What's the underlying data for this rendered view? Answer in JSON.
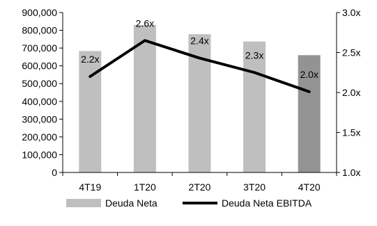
{
  "chart_data": {
    "type": "bar",
    "categories": [
      "4T19",
      "1T20",
      "2T20",
      "3T20",
      "4T20"
    ],
    "series": [
      {
        "name": "Deuda Neta",
        "type": "bar",
        "axis": "left",
        "values": [
          683000,
          830000,
          778000,
          737000,
          660000
        ],
        "colors": [
          "#bfbfbf",
          "#bfbfbf",
          "#bfbfbf",
          "#bfbfbf",
          "#939393"
        ]
      },
      {
        "name": "Deuda Neta EBITDA",
        "type": "line",
        "axis": "right",
        "values": [
          2.2,
          2.65,
          2.43,
          2.25,
          2.01
        ],
        "labels": [
          "2.2x",
          "2.6x",
          "2.4x",
          "2.3x",
          "2.0x"
        ],
        "color": "#000000"
      }
    ],
    "y_left": {
      "min": 0,
      "max": 900000,
      "ticks": [
        "0",
        "100,000",
        "200,000",
        "300,000",
        "400,000",
        "500,000",
        "600,000",
        "700,000",
        "800,000",
        "900,000"
      ]
    },
    "y_right": {
      "min": 1.0,
      "max": 3.0,
      "ticks": [
        "1.0x",
        "1.5x",
        "2.0x",
        "2.5x",
        "3.0x"
      ]
    },
    "grid": false,
    "legend_position": "bottom"
  },
  "legend": {
    "bar_label": "Deuda Neta",
    "line_label": "Deuda Neta EBITDA"
  }
}
